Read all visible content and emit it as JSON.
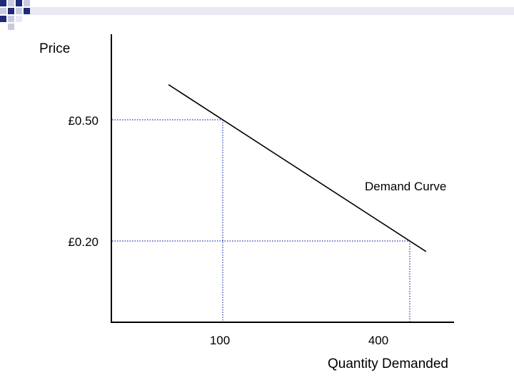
{
  "colors": {
    "banner_navy": "#1f2a78",
    "banner_gray": "#c8cbe0",
    "banner_light": "#e8e9f3",
    "axis": "#000000",
    "curve": "#000000",
    "guide": "#2233aa",
    "text": "#000000"
  },
  "chart_data": {
    "type": "line",
    "title": "",
    "ylabel": "Price",
    "xlabel": "Quantity Demanded",
    "y_ticks": [
      {
        "value": 0.5,
        "label": "£0.50"
      },
      {
        "value": 0.2,
        "label": "£0.20"
      }
    ],
    "x_ticks": [
      {
        "value": 100,
        "label": "100"
      },
      {
        "value": 400,
        "label": "400"
      }
    ],
    "series": [
      {
        "name": "Demand Curve",
        "x": [
          100,
          400
        ],
        "y": [
          0.5,
          0.2
        ]
      }
    ],
    "guide_points": [
      {
        "x": 100,
        "y": 0.5
      },
      {
        "x": 400,
        "y": 0.2
      }
    ],
    "grid": false,
    "legend": "none"
  }
}
